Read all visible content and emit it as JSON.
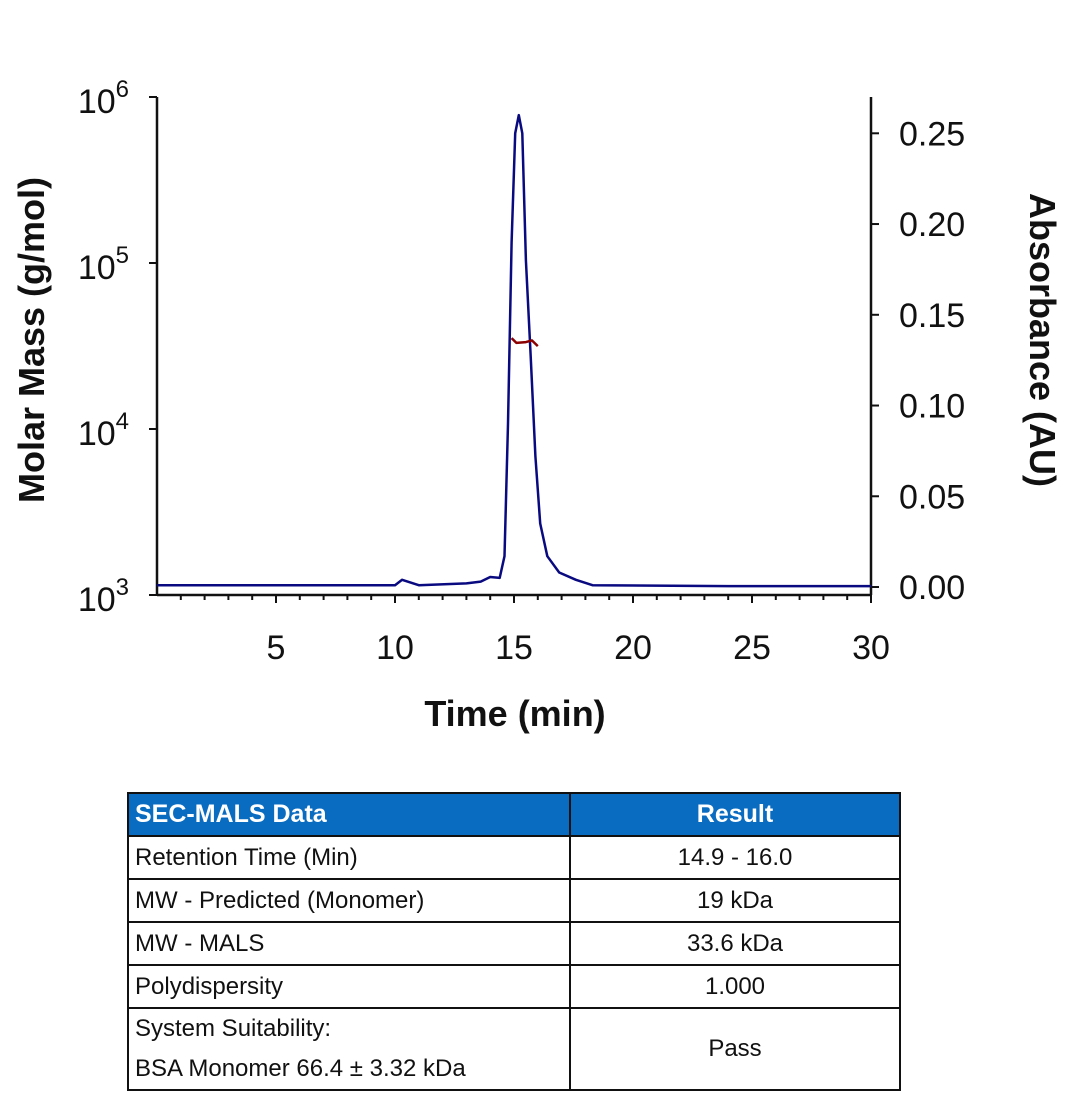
{
  "chart_data": {
    "type": "line",
    "xlabel": "Time (min)",
    "ylabel": "Molar Mass (g/mol)",
    "y2label": "Absorbance (AU)",
    "xlim": [
      0,
      30
    ],
    "xticks": [
      "5",
      "10",
      "15",
      "20",
      "25",
      "30"
    ],
    "ylim": [
      1000,
      1000000
    ],
    "yscale": "log",
    "yticks": [
      {
        "base": "10",
        "exp": "3"
      },
      {
        "base": "10",
        "exp": "4"
      },
      {
        "base": "10",
        "exp": "5"
      },
      {
        "base": "10",
        "exp": "6"
      }
    ],
    "y2lim": [
      -0.0044,
      0.27
    ],
    "y2ticks": [
      "0.00",
      "0.05",
      "0.10",
      "0.15",
      "0.20",
      "0.25"
    ],
    "grid": false,
    "series": [
      {
        "axis": "right",
        "color": "#0a0a80",
        "x": [
          0,
          9.5,
          10.0,
          10.3,
          11.0,
          13.0,
          13.6,
          14.0,
          14.4,
          14.6,
          14.75,
          14.9,
          15.05,
          15.2,
          15.35,
          15.5,
          15.7,
          15.9,
          16.1,
          16.4,
          16.9,
          17.6,
          18.3,
          24,
          30
        ],
        "y": [
          0.001,
          0.001,
          0.001,
          0.004,
          0.001,
          0.002,
          0.003,
          0.0055,
          0.005,
          0.017,
          0.09,
          0.19,
          0.25,
          0.26,
          0.25,
          0.18,
          0.127,
          0.072,
          0.035,
          0.017,
          0.008,
          0.004,
          0.001,
          0.0005,
          0.0005
        ]
      },
      {
        "axis": "left",
        "color": "#8b0000",
        "x": [
          14.9,
          15.1,
          15.5,
          15.75,
          16.0
        ],
        "y": [
          35300,
          33000,
          33400,
          34200,
          31600
        ]
      }
    ]
  },
  "table": {
    "headers": [
      "SEC-MALS Data",
      "Result"
    ],
    "rows": [
      [
        "Retention Time (Min)",
        "14.9 - 16.0"
      ],
      [
        "MW - Predicted (Monomer)",
        "19 kDa"
      ],
      [
        "MW - MALS",
        "33.6 kDa"
      ],
      [
        "Polydispersity",
        "1.000"
      ]
    ],
    "last_row": {
      "line1": "System Suitability:",
      "line2": "BSA Monomer 66.4 ± 3.32 kDa",
      "result": "Pass"
    },
    "header_color": "#0a6cc0"
  }
}
